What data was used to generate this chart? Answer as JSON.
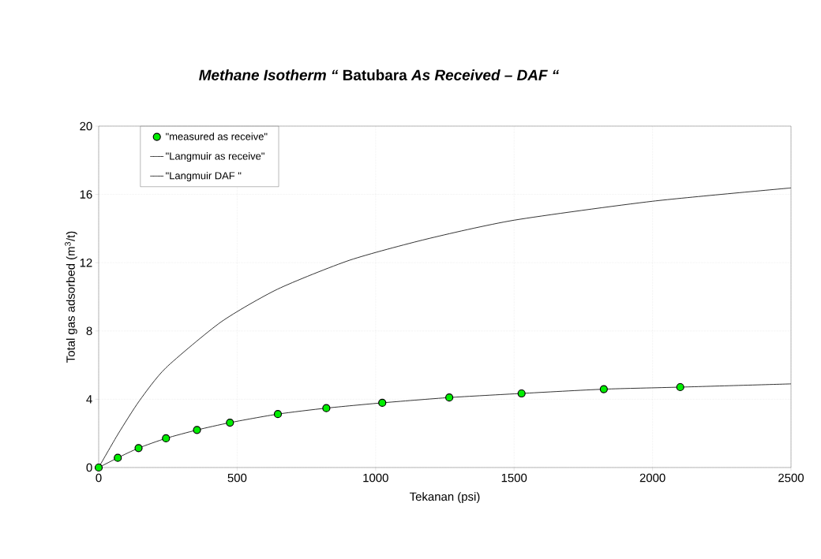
{
  "chart_data": {
    "type": "line",
    "title": "*Methane Isotherm “* Batubara *As Received – DAF “*",
    "xlabel": "Tekanan (psi)",
    "ylabel": "Total gas adsorbed (m$^{3}$/t)",
    "xlim": [
      0,
      2500
    ],
    "ylim": [
      0,
      20
    ],
    "xticks": [
      0,
      500,
      1000,
      1500,
      2000,
      2500
    ],
    "yticks": [
      0,
      4,
      8,
      12,
      16,
      20
    ],
    "grid": true,
    "legend": "top left",
    "series": [
      {
        "name": "\"measured as receive\"",
        "type": "scatter",
        "marker": "circle",
        "color": "#00ee00",
        "x": [
          0,
          69,
          144,
          243,
          355,
          474,
          647,
          822,
          1024,
          1266,
          1527,
          1824,
          2100
        ],
        "values": [
          0,
          0.57,
          1.14,
          1.71,
          2.2,
          2.63,
          3.13,
          3.48,
          3.79,
          4.1,
          4.34,
          4.59,
          4.71
        ]
      },
      {
        "name": "\"Langmuir as receive\"",
        "marker": "none",
        "line_style": "solid",
        "color": "#000000",
        "x": [
          0,
          69,
          144,
          243,
          355,
          474,
          647,
          822,
          1024,
          1266,
          1527,
          1824,
          2100,
          2500
        ],
        "values": [
          0,
          0.57,
          1.14,
          1.71,
          2.2,
          2.63,
          3.13,
          3.48,
          3.79,
          4.1,
          4.34,
          4.59,
          4.71,
          4.9
        ]
      },
      {
        "name": "\"Langmuir DAF \"",
        "marker": "none",
        "line_style": "solid",
        "color": "#000000",
        "x": [
          0,
          71,
          147,
          242,
          442,
          646,
          907,
          1183,
          1500,
          2000,
          2500
        ],
        "values": [
          0,
          1.99,
          3.91,
          5.83,
          8.53,
          10.45,
          12.15,
          13.38,
          14.49,
          15.6,
          16.38
        ]
      }
    ]
  }
}
